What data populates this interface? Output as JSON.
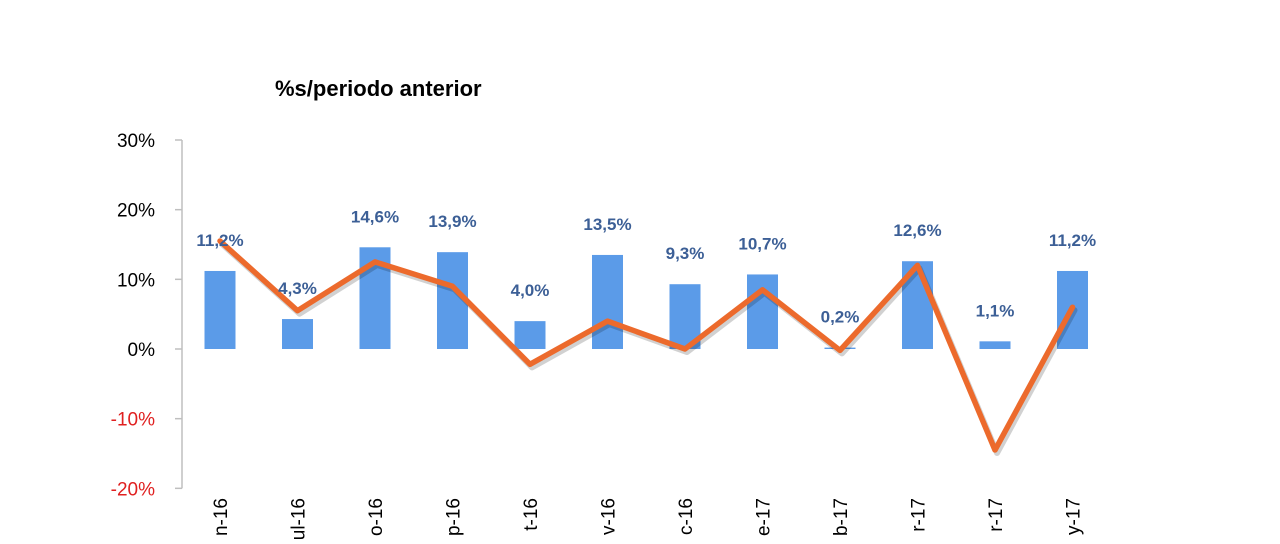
{
  "chart_data": {
    "type": "bar",
    "title": "%s/periodo anterior",
    "categories": [
      "n-16",
      "ul-16",
      "o-16",
      "p-16",
      "t-16",
      "v-16",
      "c-16",
      "e-17",
      "b-17",
      "r-17",
      "r-17",
      "y-17"
    ],
    "series": [
      {
        "type": "bar",
        "values": [
          11.2,
          4.3,
          14.6,
          13.9,
          4.0,
          13.5,
          9.3,
          10.7,
          0.2,
          12.6,
          1.1,
          11.2
        ],
        "labels": [
          "11,2%",
          "4,3%",
          "14,6%",
          "13,9%",
          "4,0%",
          "13,5%",
          "9,3%",
          "10,7%",
          "0,2%",
          "12,6%",
          "1,1%",
          "11,2%"
        ]
      },
      {
        "type": "line",
        "values": [
          15.5,
          5.5,
          12.5,
          9.0,
          -2.2,
          4.0,
          0.0,
          8.5,
          -0.2,
          12.0,
          -14.5,
          6.0
        ]
      }
    ],
    "y_ticks": [
      "30%",
      "20%",
      "10%",
      "0%",
      "-10%",
      "-20%"
    ],
    "y_tick_values": [
      30,
      20,
      10,
      0,
      -10,
      -20
    ],
    "ylim": [
      -20,
      30
    ],
    "grid": false,
    "legend": "none",
    "colors": {
      "bar": "#5b9be8",
      "line": "#ec6a2c",
      "data_label": "#3c5f96",
      "axis": "#bfbfbf",
      "negative_tick": "#e02020",
      "positive_tick": "#000000"
    }
  }
}
